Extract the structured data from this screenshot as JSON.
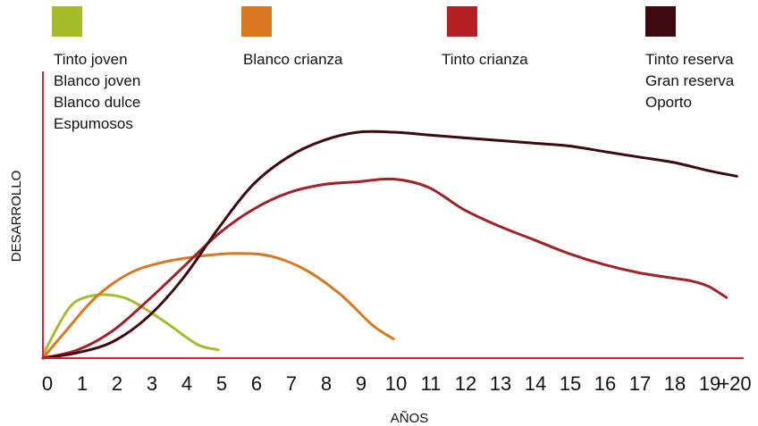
{
  "chart_data": {
    "type": "line",
    "xlabel": "AÑOS",
    "ylabel": "DESARROLLO",
    "x_ticks": [
      "0",
      "1",
      "2",
      "3",
      "4",
      "5",
      "6",
      "7",
      "8",
      "9",
      "10",
      "11",
      "12",
      "13",
      "14",
      "15",
      "16",
      "17",
      "18",
      "19",
      "+20"
    ],
    "xlim": [
      0,
      20
    ],
    "ylim": [
      0,
      100
    ],
    "grid": false,
    "legend_position": "top",
    "legend": [
      {
        "color": "#a8bb2a",
        "labels": [
          "Tinto joven",
          "Blanco joven",
          "Blanco dulce",
          "Espumosos"
        ]
      },
      {
        "color": "#d9781e",
        "labels": [
          "Blanco crianza"
        ]
      },
      {
        "color": "#b52025",
        "labels": [
          "Tinto crianza"
        ]
      },
      {
        "color": "#3d0a0f",
        "labels": [
          "Tinto reserva",
          "Gran reserva",
          "Oporto"
        ]
      }
    ],
    "series": [
      {
        "color": "#a8bb2a",
        "points": [
          [
            0,
            1
          ],
          [
            0.4,
            11
          ],
          [
            0.8,
            19
          ],
          [
            1.2,
            22
          ],
          [
            1.8,
            23
          ],
          [
            2.5,
            21
          ],
          [
            3.5,
            13
          ],
          [
            4.4,
            5
          ],
          [
            5,
            3
          ]
        ]
      },
      {
        "color": "#d9781e",
        "points": [
          [
            0,
            0
          ],
          [
            0.6,
            9
          ],
          [
            1.5,
            22
          ],
          [
            2.5,
            31
          ],
          [
            3.5,
            35
          ],
          [
            4.5,
            37
          ],
          [
            5.5,
            38
          ],
          [
            6.5,
            37
          ],
          [
            7.5,
            32
          ],
          [
            8.5,
            23
          ],
          [
            9.4,
            12
          ],
          [
            10,
            7
          ]
        ]
      },
      {
        "color": "#a0232b",
        "points": [
          [
            0,
            0
          ],
          [
            1,
            3
          ],
          [
            2,
            10
          ],
          [
            3,
            21
          ],
          [
            4,
            33
          ],
          [
            5,
            45
          ],
          [
            6,
            54
          ],
          [
            7,
            60
          ],
          [
            8,
            63
          ],
          [
            9,
            64
          ],
          [
            10,
            65
          ],
          [
            11,
            62
          ],
          [
            12,
            54
          ],
          [
            13,
            48
          ],
          [
            14,
            43
          ],
          [
            15,
            38
          ],
          [
            16,
            34
          ],
          [
            17,
            31
          ],
          [
            18,
            29
          ],
          [
            18.5,
            28
          ],
          [
            19,
            26
          ],
          [
            19.5,
            22
          ]
        ]
      },
      {
        "color": "#3d0a0f",
        "points": [
          [
            0,
            0
          ],
          [
            1,
            2
          ],
          [
            2,
            6
          ],
          [
            3,
            15
          ],
          [
            4,
            29
          ],
          [
            5,
            47
          ],
          [
            6,
            63
          ],
          [
            7,
            73
          ],
          [
            8,
            79
          ],
          [
            9,
            82
          ],
          [
            10,
            82
          ],
          [
            11,
            81
          ],
          [
            12,
            80
          ],
          [
            13,
            79
          ],
          [
            14,
            78
          ],
          [
            15,
            77
          ],
          [
            16,
            75
          ],
          [
            17,
            73
          ],
          [
            18,
            71
          ],
          [
            19,
            68
          ],
          [
            19.8,
            66
          ]
        ]
      }
    ]
  }
}
